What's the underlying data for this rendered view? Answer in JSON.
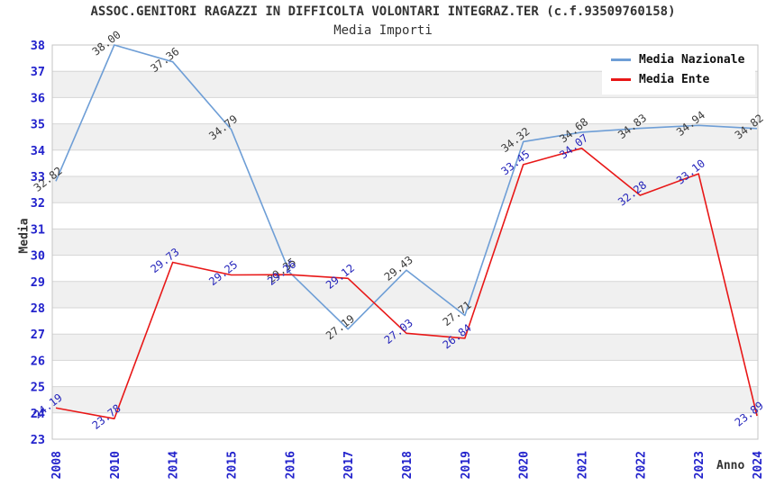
{
  "chart_data": {
    "type": "line",
    "title": "ASSOC.GENITORI RAGAZZI IN DIFFICOLTA VOLONTARI INTEGRAZ.TER (c.f.93509760158)",
    "subtitle": "Media Importi",
    "xlabel": "Anno",
    "ylabel": "Media",
    "ylim": [
      23,
      38
    ],
    "ytick_step": 1,
    "grid": true,
    "legend_position": "top-right",
    "categories": [
      "2008",
      "2010",
      "2014",
      "2015",
      "2016",
      "2017",
      "2018",
      "2019",
      "2020",
      "2021",
      "2022",
      "2023",
      "2024"
    ],
    "series": [
      {
        "name": "Media Nazionale",
        "color": "#6e9ed6",
        "label_color": "#3b3b3b",
        "values": [
          32.82,
          38.0,
          37.36,
          34.79,
          29.35,
          27.19,
          29.43,
          27.71,
          34.32,
          34.68,
          34.83,
          34.94,
          34.82
        ]
      },
      {
        "name": "Media Ente",
        "color": "#e81717",
        "label_color": "#2525bb",
        "values": [
          24.19,
          23.78,
          29.73,
          29.25,
          29.26,
          29.12,
          27.03,
          26.84,
          33.45,
          34.07,
          32.28,
          33.1,
          23.89
        ]
      }
    ]
  },
  "colors": {
    "axis_tick": "#2222cc",
    "grid_line": "#d6d6d6",
    "band_fill": "#f0f0f0",
    "plot_border": "#c4c4c4",
    "text_dark": "#333333"
  }
}
